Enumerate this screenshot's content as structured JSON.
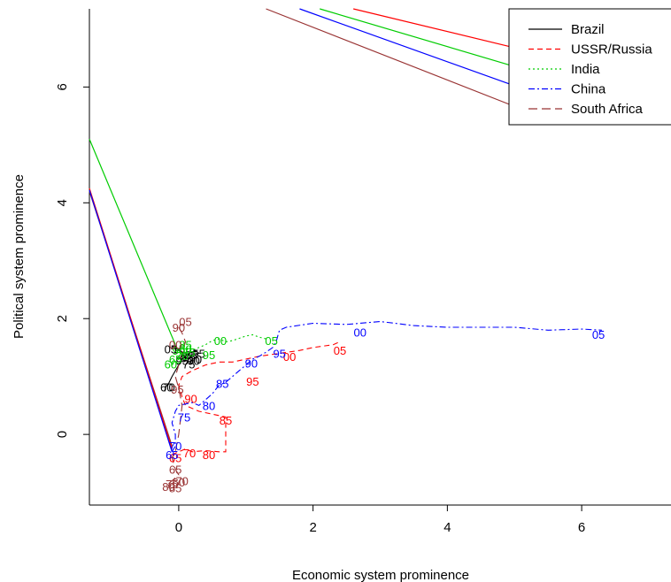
{
  "chart_data": {
    "type": "line",
    "title": "",
    "xlabel": "Economic system prominence",
    "ylabel": "Political system prominence",
    "xlim": [
      -1.33,
      7.33
    ],
    "ylim": [
      -1.22,
      7.35
    ],
    "xticks": [
      0,
      2,
      4,
      6
    ],
    "yticks": [
      0,
      2,
      4,
      6
    ],
    "legend_position": "top-right",
    "series": [
      {
        "name": "Brazil",
        "color": "#000000",
        "dash": "",
        "points": [
          [
            -0.2,
            0.82
          ],
          [
            -0.15,
            0.88
          ],
          [
            -0.1,
            1.0
          ],
          [
            -0.05,
            1.1
          ],
          [
            0.0,
            1.2
          ],
          [
            0.05,
            1.3
          ],
          [
            0.1,
            1.35
          ],
          [
            0.15,
            1.4
          ],
          [
            0.2,
            1.42
          ],
          [
            0.25,
            1.45
          ],
          [
            0.3,
            1.4
          ],
          [
            0.2,
            1.35
          ],
          [
            0.15,
            1.3
          ],
          [
            0.1,
            1.32
          ],
          [
            0.05,
            1.4
          ],
          [
            0.0,
            1.45
          ],
          [
            -0.05,
            1.5
          ],
          [
            -0.1,
            1.52
          ],
          [
            0.0,
            1.48
          ],
          [
            0.05,
            1.42
          ],
          [
            0.1,
            1.4
          ]
        ],
        "labels": [
          {
            "text": "60",
            "x": -0.18,
            "y": 0.82
          },
          {
            "text": "70",
            "x": -0.15,
            "y": 0.82
          },
          {
            "text": "05",
            "x": -0.12,
            "y": 1.48
          },
          {
            "text": "15",
            "x": 0.0,
            "y": 1.48
          },
          {
            "text": "80",
            "x": 0.12,
            "y": 1.32
          },
          {
            "text": "85",
            "x": 0.18,
            "y": 1.38
          },
          {
            "text": "90",
            "x": 0.25,
            "y": 1.3
          },
          {
            "text": "75",
            "x": 0.15,
            "y": 1.22
          },
          {
            "text": "95",
            "x": 0.05,
            "y": 1.28
          },
          {
            "text": "00",
            "x": 0.22,
            "y": 1.28
          },
          {
            "text": "55",
            "x": 0.3,
            "y": 1.4
          }
        ]
      },
      {
        "name": "USSR/Russia",
        "color": "#ff0000",
        "dash": "6,4",
        "points": [
          [
            -0.1,
            -0.35
          ],
          [
            0.0,
            -0.3
          ],
          [
            0.1,
            -0.25
          ],
          [
            0.2,
            -0.3
          ],
          [
            0.4,
            -0.28
          ],
          [
            0.6,
            -0.3
          ],
          [
            0.7,
            -0.3
          ],
          [
            0.7,
            0.3
          ],
          [
            0.5,
            0.35
          ],
          [
            0.3,
            0.4
          ],
          [
            0.1,
            0.5
          ],
          [
            0.05,
            0.65
          ],
          [
            0.0,
            0.85
          ],
          [
            0.05,
            1.0
          ],
          [
            0.2,
            1.1
          ],
          [
            0.4,
            1.2
          ],
          [
            0.6,
            1.25
          ],
          [
            0.8,
            1.25
          ],
          [
            1.0,
            1.3
          ],
          [
            1.2,
            1.35
          ],
          [
            1.5,
            1.4
          ],
          [
            1.8,
            1.45
          ],
          [
            2.0,
            1.5
          ],
          [
            2.3,
            1.55
          ],
          [
            2.4,
            1.6
          ]
        ],
        "labels": [
          {
            "text": "65",
            "x": -0.05,
            "y": -0.4
          },
          {
            "text": "70",
            "x": 0.16,
            "y": -0.32
          },
          {
            "text": "80",
            "x": 0.45,
            "y": -0.35
          },
          {
            "text": "85",
            "x": 0.7,
            "y": 0.25
          },
          {
            "text": "90",
            "x": 0.18,
            "y": 0.62
          },
          {
            "text": "95",
            "x": 1.1,
            "y": 0.92
          },
          {
            "text": "00",
            "x": 1.65,
            "y": 1.35
          },
          {
            "text": "05",
            "x": 2.4,
            "y": 1.45
          }
        ]
      },
      {
        "name": "India",
        "color": "#00cc00",
        "dash": "2,3",
        "points": [
          [
            -0.1,
            1.2
          ],
          [
            0.0,
            1.3
          ],
          [
            0.1,
            1.4
          ],
          [
            0.2,
            1.45
          ],
          [
            0.3,
            1.5
          ],
          [
            0.4,
            1.55
          ],
          [
            0.5,
            1.62
          ],
          [
            0.6,
            1.65
          ],
          [
            0.7,
            1.6
          ],
          [
            0.8,
            1.62
          ],
          [
            0.9,
            1.66
          ],
          [
            1.0,
            1.7
          ],
          [
            1.1,
            1.72
          ],
          [
            1.2,
            1.68
          ],
          [
            1.3,
            1.65
          ]
        ],
        "labels": [
          {
            "text": "60",
            "x": -0.12,
            "y": 1.22
          },
          {
            "text": "65",
            "x": -0.05,
            "y": 1.3
          },
          {
            "text": "70",
            "x": 0.05,
            "y": 1.36
          },
          {
            "text": "75",
            "x": 0.15,
            "y": 1.42
          },
          {
            "text": "80",
            "x": 0.1,
            "y": 1.48
          },
          {
            "text": "85",
            "x": 0.1,
            "y": 1.55
          },
          {
            "text": "90",
            "x": 0.0,
            "y": 1.45
          },
          {
            "text": "95",
            "x": 0.45,
            "y": 1.38
          },
          {
            "text": "00",
            "x": 0.62,
            "y": 1.62
          },
          {
            "text": "05",
            "x": 1.38,
            "y": 1.62
          }
        ]
      },
      {
        "name": "China",
        "color": "#0000ff",
        "dash": "7,3,2,3",
        "points": [
          [
            -0.1,
            -0.3
          ],
          [
            -0.05,
            -0.2
          ],
          [
            -0.05,
            0.0
          ],
          [
            -0.1,
            0.2
          ],
          [
            -0.05,
            0.4
          ],
          [
            0.0,
            0.5
          ],
          [
            0.2,
            0.55
          ],
          [
            0.3,
            0.5
          ],
          [
            0.4,
            0.6
          ],
          [
            0.5,
            0.7
          ],
          [
            0.6,
            0.85
          ],
          [
            0.7,
            0.9
          ],
          [
            0.8,
            1.0
          ],
          [
            0.9,
            1.1
          ],
          [
            1.0,
            1.2
          ],
          [
            1.1,
            1.3
          ],
          [
            1.2,
            1.35
          ],
          [
            1.3,
            1.42
          ],
          [
            1.4,
            1.5
          ],
          [
            1.45,
            1.6
          ],
          [
            1.5,
            1.8
          ],
          [
            1.6,
            1.85
          ],
          [
            2.0,
            1.92
          ],
          [
            2.5,
            1.9
          ],
          [
            3.0,
            1.95
          ],
          [
            3.5,
            1.88
          ],
          [
            4.0,
            1.85
          ],
          [
            5.0,
            1.85
          ],
          [
            5.5,
            1.8
          ],
          [
            6.0,
            1.82
          ],
          [
            6.3,
            1.8
          ]
        ],
        "labels": [
          {
            "text": "65",
            "x": -0.1,
            "y": -0.35
          },
          {
            "text": "70",
            "x": -0.05,
            "y": -0.2
          },
          {
            "text": "75",
            "x": 0.08,
            "y": 0.3
          },
          {
            "text": "80",
            "x": 0.45,
            "y": 0.5
          },
          {
            "text": "85",
            "x": 0.65,
            "y": 0.88
          },
          {
            "text": "90",
            "x": 1.08,
            "y": 1.23
          },
          {
            "text": "95",
            "x": 1.5,
            "y": 1.4
          },
          {
            "text": "00",
            "x": 2.7,
            "y": 1.77
          },
          {
            "text": "05",
            "x": 6.25,
            "y": 1.73
          }
        ]
      },
      {
        "name": "South Africa",
        "color": "#993333",
        "dash": "10,5",
        "points": [
          [
            -0.15,
            -0.85
          ],
          [
            -0.1,
            -0.8
          ],
          [
            -0.05,
            -0.75
          ],
          [
            0.0,
            -0.7
          ],
          [
            -0.05,
            -0.6
          ],
          [
            -0.1,
            -0.4
          ],
          [
            -0.05,
            -0.3
          ],
          [
            0.0,
            0.0
          ],
          [
            0.05,
            0.5
          ],
          [
            0.0,
            0.8
          ],
          [
            -0.05,
            1.0
          ],
          [
            0.0,
            1.2
          ],
          [
            0.05,
            1.4
          ],
          [
            0.1,
            1.6
          ],
          [
            0.05,
            1.75
          ],
          [
            0.0,
            1.85
          ]
        ],
        "labels": [
          {
            "text": "80",
            "x": -0.15,
            "y": -0.9
          },
          {
            "text": "75",
            "x": -0.1,
            "y": -0.85
          },
          {
            "text": "85",
            "x": -0.05,
            "y": -0.92
          },
          {
            "text": "60",
            "x": 0.0,
            "y": -0.82
          },
          {
            "text": "70",
            "x": 0.05,
            "y": -0.8
          },
          {
            "text": "65",
            "x": -0.05,
            "y": -0.6
          },
          {
            "text": "95",
            "x": -0.02,
            "y": 0.78
          },
          {
            "text": "90",
            "x": 0.0,
            "y": 1.85
          },
          {
            "text": "05",
            "x": 0.1,
            "y": 1.95
          },
          {
            "text": "00",
            "x": -0.05,
            "y": 1.55
          }
        ]
      }
    ],
    "legend_connectors": [
      {
        "series": "Brazil",
        "color": "#993333",
        "from": [
          -1.33,
          4.2
        ],
        "to": [
          -0.1,
          -0.2
        ]
      },
      {
        "series": "USSR/Russia",
        "color": "#ff0000",
        "from": [
          -1.33,
          4.25
        ],
        "to": [
          -0.1,
          -0.25
        ]
      },
      {
        "series": "India",
        "color": "#00cc00",
        "from": [
          -1.33,
          5.1
        ],
        "to": [
          -0.05,
          1.55
        ]
      },
      {
        "series": "China",
        "color": "#0000ff",
        "from": [
          -1.33,
          4.22
        ],
        "to": [
          -0.1,
          -0.3
        ]
      },
      {
        "series": "South Africa top",
        "color": "#993333",
        "from": [
          1.3,
          7.35
        ],
        "to": [
          5.1,
          5.62
        ]
      },
      {
        "series": "USSR top",
        "color": "#ff0000",
        "from": [
          2.6,
          7.35
        ],
        "to": [
          5.1,
          6.65
        ]
      },
      {
        "series": "India top",
        "color": "#00cc00",
        "from": [
          2.1,
          7.35
        ],
        "to": [
          5.1,
          6.32
        ]
      },
      {
        "series": "China top",
        "color": "#0000ff",
        "from": [
          1.8,
          7.35
        ],
        "to": [
          5.1,
          5.98
        ]
      }
    ]
  }
}
